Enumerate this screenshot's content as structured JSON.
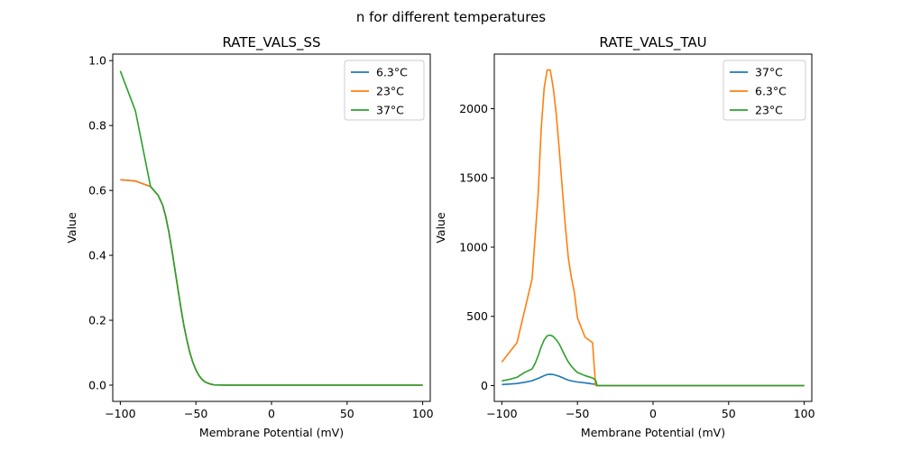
{
  "figure": {
    "suptitle": "n for different temperatures"
  },
  "colors": {
    "blue": "#1f77b4",
    "orange": "#ff7f0e",
    "green": "#2ca02c"
  },
  "chart_data": [
    {
      "type": "line",
      "title": "RATE_VALS_SS",
      "xlabel": "Membrane Potential (mV)",
      "ylabel": "Value",
      "xlim": [
        -105,
        105
      ],
      "ylim": [
        -0.05,
        1.02
      ],
      "xticks": [
        -100,
        -50,
        0,
        50,
        100
      ],
      "yticks": [
        0.0,
        0.2,
        0.4,
        0.6,
        0.8,
        1.0
      ],
      "xtick_labels": [
        "−100",
        "−50",
        "0",
        "50",
        "100"
      ],
      "ytick_labels": [
        "0.0",
        "0.2",
        "0.4",
        "0.6",
        "0.8",
        "1.0"
      ],
      "grid": false,
      "legend_position": "top-right",
      "series": [
        {
          "name": "6.3°C",
          "color": "#1f77b4",
          "x": [
            -100,
            -90,
            -80,
            -75,
            -72,
            -70,
            -68,
            -66,
            -64,
            -62,
            -60,
            -58,
            -56,
            -54,
            -52,
            -50,
            -48,
            -46,
            -44,
            -42,
            -40,
            -38,
            -30,
            -20,
            0,
            50,
            100
          ],
          "y": [
            0.633,
            0.629,
            0.612,
            0.585,
            0.555,
            0.52,
            0.475,
            0.42,
            0.36,
            0.3,
            0.24,
            0.185,
            0.14,
            0.1,
            0.07,
            0.047,
            0.03,
            0.018,
            0.01,
            0.006,
            0.003,
            0.001,
            0.0,
            0.0,
            0.0,
            0.0,
            0.0
          ]
        },
        {
          "name": "23°C",
          "color": "#ff7f0e",
          "x": [
            -100,
            -90,
            -80,
            -75,
            -72,
            -70,
            -68,
            -66,
            -64,
            -62,
            -60,
            -58,
            -56,
            -54,
            -52,
            -50,
            -48,
            -46,
            -44,
            -42,
            -40,
            -38,
            -30,
            -20,
            0,
            50,
            100
          ],
          "y": [
            0.633,
            0.629,
            0.612,
            0.585,
            0.555,
            0.52,
            0.475,
            0.42,
            0.36,
            0.3,
            0.24,
            0.185,
            0.14,
            0.1,
            0.07,
            0.047,
            0.03,
            0.018,
            0.01,
            0.006,
            0.003,
            0.001,
            0.0,
            0.0,
            0.0,
            0.0,
            0.0
          ]
        },
        {
          "name": "37°C",
          "color": "#2ca02c",
          "x": [
            -100,
            -90,
            -80,
            -75,
            -72,
            -70,
            -68,
            -66,
            -64,
            -62,
            -60,
            -58,
            -56,
            -54,
            -52,
            -50,
            -48,
            -46,
            -44,
            -42,
            -40,
            -38,
            -30,
            -20,
            0,
            50,
            100
          ],
          "y": [
            0.968,
            0.845,
            0.612,
            0.585,
            0.555,
            0.52,
            0.475,
            0.42,
            0.36,
            0.3,
            0.24,
            0.185,
            0.14,
            0.1,
            0.07,
            0.047,
            0.03,
            0.018,
            0.01,
            0.006,
            0.003,
            0.001,
            0.0,
            0.0,
            0.0,
            0.0,
            0.0
          ]
        }
      ]
    },
    {
      "type": "line",
      "title": "RATE_VALS_TAU",
      "xlabel": "Membrane Potential (mV)",
      "ylabel": "Value",
      "xlim": [
        -105,
        105
      ],
      "ylim": [
        -114,
        2394
      ],
      "xticks": [
        -100,
        -50,
        0,
        50,
        100
      ],
      "yticks": [
        0,
        500,
        1000,
        1500,
        2000
      ],
      "xtick_labels": [
        "−100",
        "−50",
        "0",
        "50",
        "100"
      ],
      "ytick_labels": [
        "0",
        "500",
        "1000",
        "1500",
        "2000"
      ],
      "grid": false,
      "legend_position": "top-right",
      "series": [
        {
          "name": "37°C",
          "color": "#1f77b4",
          "x": [
            -100,
            -95,
            -90,
            -85,
            -80,
            -78,
            -76,
            -74,
            -72,
            -70,
            -68,
            -66,
            -64,
            -62,
            -60,
            -58,
            -56,
            -54,
            -52,
            -50,
            -45,
            -40,
            -38,
            -37,
            -30,
            0,
            50,
            100
          ],
          "y": [
            8,
            11,
            15,
            24,
            35,
            44,
            52,
            62,
            72,
            80,
            82,
            80,
            74,
            67,
            58,
            48,
            40,
            34,
            30,
            26,
            20,
            12,
            10,
            0,
            0,
            0,
            0,
            0
          ]
        },
        {
          "name": "6.3°C",
          "color": "#ff7f0e",
          "x": [
            -100,
            -90,
            -80,
            -76,
            -74,
            -72,
            -70,
            -68,
            -66,
            -64,
            -62,
            -60,
            -58,
            -56,
            -54,
            -52,
            -50,
            -45,
            -40,
            -38,
            -37,
            -30,
            0,
            50,
            100
          ],
          "y": [
            170,
            310,
            770,
            1380,
            1850,
            2150,
            2280,
            2280,
            2150,
            1960,
            1700,
            1420,
            1150,
            920,
            780,
            670,
            490,
            350,
            310,
            0,
            0,
            0,
            0,
            0,
            0
          ]
        },
        {
          "name": "23°C",
          "color": "#2ca02c",
          "x": [
            -100,
            -95,
            -90,
            -85,
            -80,
            -78,
            -76,
            -74,
            -72,
            -70,
            -68,
            -66,
            -64,
            -62,
            -60,
            -58,
            -56,
            -54,
            -52,
            -50,
            -45,
            -40,
            -38,
            -37,
            -30,
            0,
            50,
            100
          ],
          "y": [
            34,
            45,
            60,
            95,
            120,
            160,
            215,
            280,
            330,
            360,
            365,
            355,
            330,
            300,
            255,
            210,
            170,
            140,
            115,
            95,
            72,
            55,
            40,
            0,
            0,
            0,
            0,
            0
          ]
        }
      ]
    }
  ]
}
